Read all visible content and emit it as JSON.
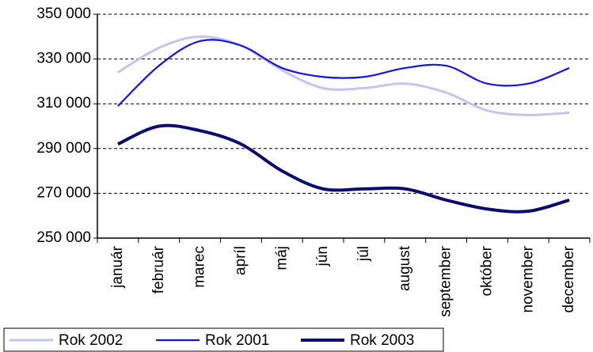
{
  "chart_data": {
    "type": "line",
    "categories": [
      "január",
      "február",
      "marec",
      "apríl",
      "máj",
      "jún",
      "júl",
      "august",
      "september",
      "október",
      "november",
      "december"
    ],
    "series": [
      {
        "name": "Rok 2002",
        "color": "#c4c4ee",
        "values": [
          324000,
          335000,
          340000,
          336000,
          325000,
          317000,
          317000,
          319000,
          315000,
          307000,
          305000,
          306000
        ]
      },
      {
        "name": "Rok 2001",
        "color": "#1414e6",
        "values": [
          309000,
          327000,
          338000,
          336000,
          326000,
          322000,
          322000,
          326000,
          327000,
          319000,
          319000,
          326000
        ]
      },
      {
        "name": "Rok 2003",
        "color": "#0c0c70",
        "values": [
          292000,
          300000,
          298000,
          292000,
          280000,
          272000,
          272000,
          272000,
          267000,
          263000,
          262000,
          267000
        ]
      }
    ],
    "ylim": [
      250000,
      350000
    ],
    "yticks": [
      {
        "value": 250000,
        "label": "250 000"
      },
      {
        "value": 270000,
        "label": "270 000"
      },
      {
        "value": 290000,
        "label": "290 000"
      },
      {
        "value": 310000,
        "label": "310 000"
      },
      {
        "value": 330000,
        "label": "330 000"
      },
      {
        "value": 350000,
        "label": "350 000"
      }
    ],
    "grid": true,
    "legend": "bottom-left"
  }
}
